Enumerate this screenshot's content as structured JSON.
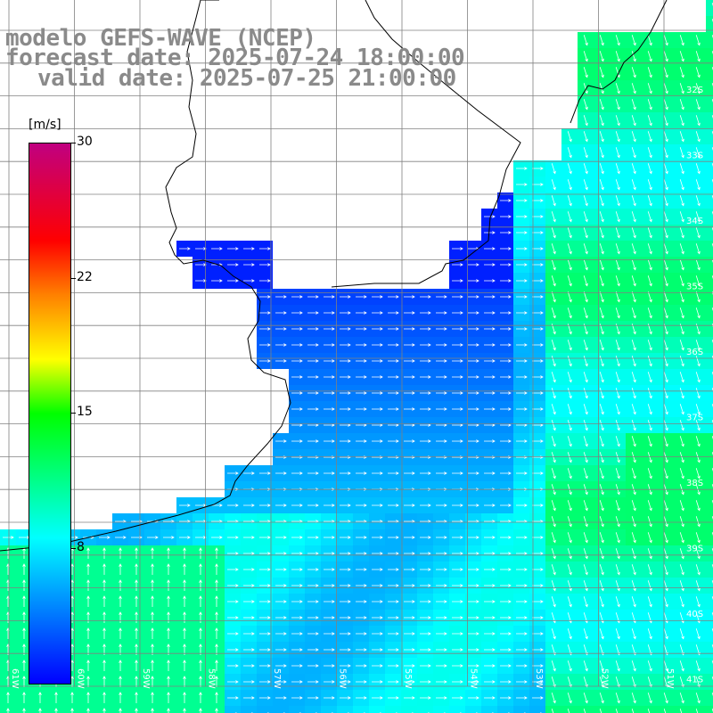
{
  "title": {
    "model": "modelo GEFS-WAVE (NCEP)",
    "forecast": "forecast date: 2025-07-24 18:00:00",
    "valid": "valid date: 2025-07-25 21:00:00"
  },
  "colorbar": {
    "unit": "[m/s]",
    "ticks": [
      "30",
      "22",
      "15",
      "8"
    ],
    "min": 0,
    "max": 30,
    "colors": [
      "#0000ff",
      "#00ffff",
      "#00ff00",
      "#ffff00",
      "#ff0000",
      "#c00080"
    ]
  },
  "lat_labels": [
    "32S",
    "33S",
    "34S",
    "35S",
    "36S",
    "37S",
    "38S",
    "39S",
    "40S",
    "41S"
  ],
  "lon_labels": [
    "61W",
    "60W",
    "59W",
    "58W",
    "57W",
    "56W",
    "55W",
    "54W",
    "53W",
    "52W",
    "51W"
  ],
  "colors": {
    "land": "#ffffff",
    "grid": "#808080",
    "coast": "#000000",
    "arrow": "#ffffff"
  }
}
